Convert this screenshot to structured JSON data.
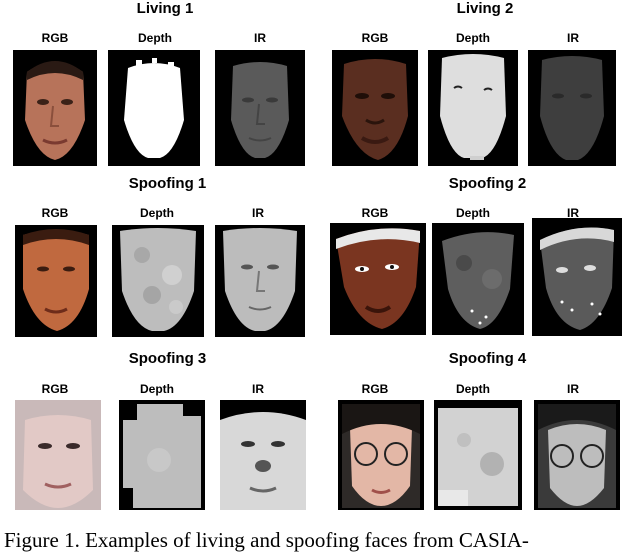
{
  "groups": {
    "living1": {
      "title": "Living 1",
      "labels": [
        "RGB",
        "Depth",
        "IR"
      ]
    },
    "living2": {
      "title": "Living 2",
      "labels": [
        "RGB",
        "Depth",
        "IR"
      ]
    },
    "spoofing1": {
      "title": "Spoofing 1",
      "labels": [
        "RGB",
        "Depth",
        "IR"
      ]
    },
    "spoofing2": {
      "title": "Spoofing 2",
      "labels": [
        "RGB",
        "Depth",
        "IR"
      ]
    },
    "spoofing3": {
      "title": "Spoofing 3",
      "labels": [
        "RGB",
        "Depth",
        "IR"
      ]
    },
    "spoofing4": {
      "title": "Spoofing 4",
      "labels": [
        "RGB",
        "Depth",
        "IR"
      ]
    }
  },
  "caption": "Figure 1.   Examples of living and spoofing faces from CASIA-"
}
